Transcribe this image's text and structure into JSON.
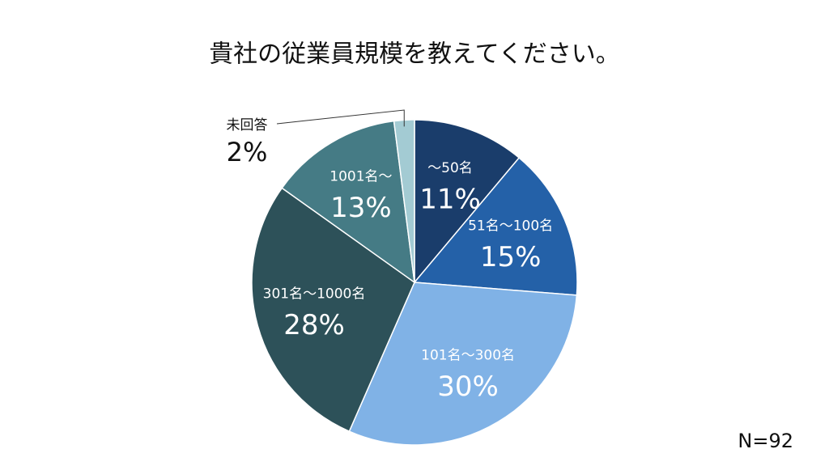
{
  "chart_data": {
    "type": "pie",
    "title": "貴社の従業員規模を教えてください。",
    "categories": [
      "〜50名",
      "51名〜100名",
      "101名〜300名",
      "301名〜1000名",
      "1001名〜",
      "未回答"
    ],
    "values": [
      11,
      15,
      30,
      28,
      13,
      2
    ],
    "value_labels": [
      "11%",
      "15%",
      "30%",
      "28%",
      "13%",
      "2%"
    ],
    "colors": [
      "#1a3d6b",
      "#2461a8",
      "#80b2e6",
      "#2d5159",
      "#457b85",
      "#a3cbd3"
    ],
    "note": "N=92"
  }
}
